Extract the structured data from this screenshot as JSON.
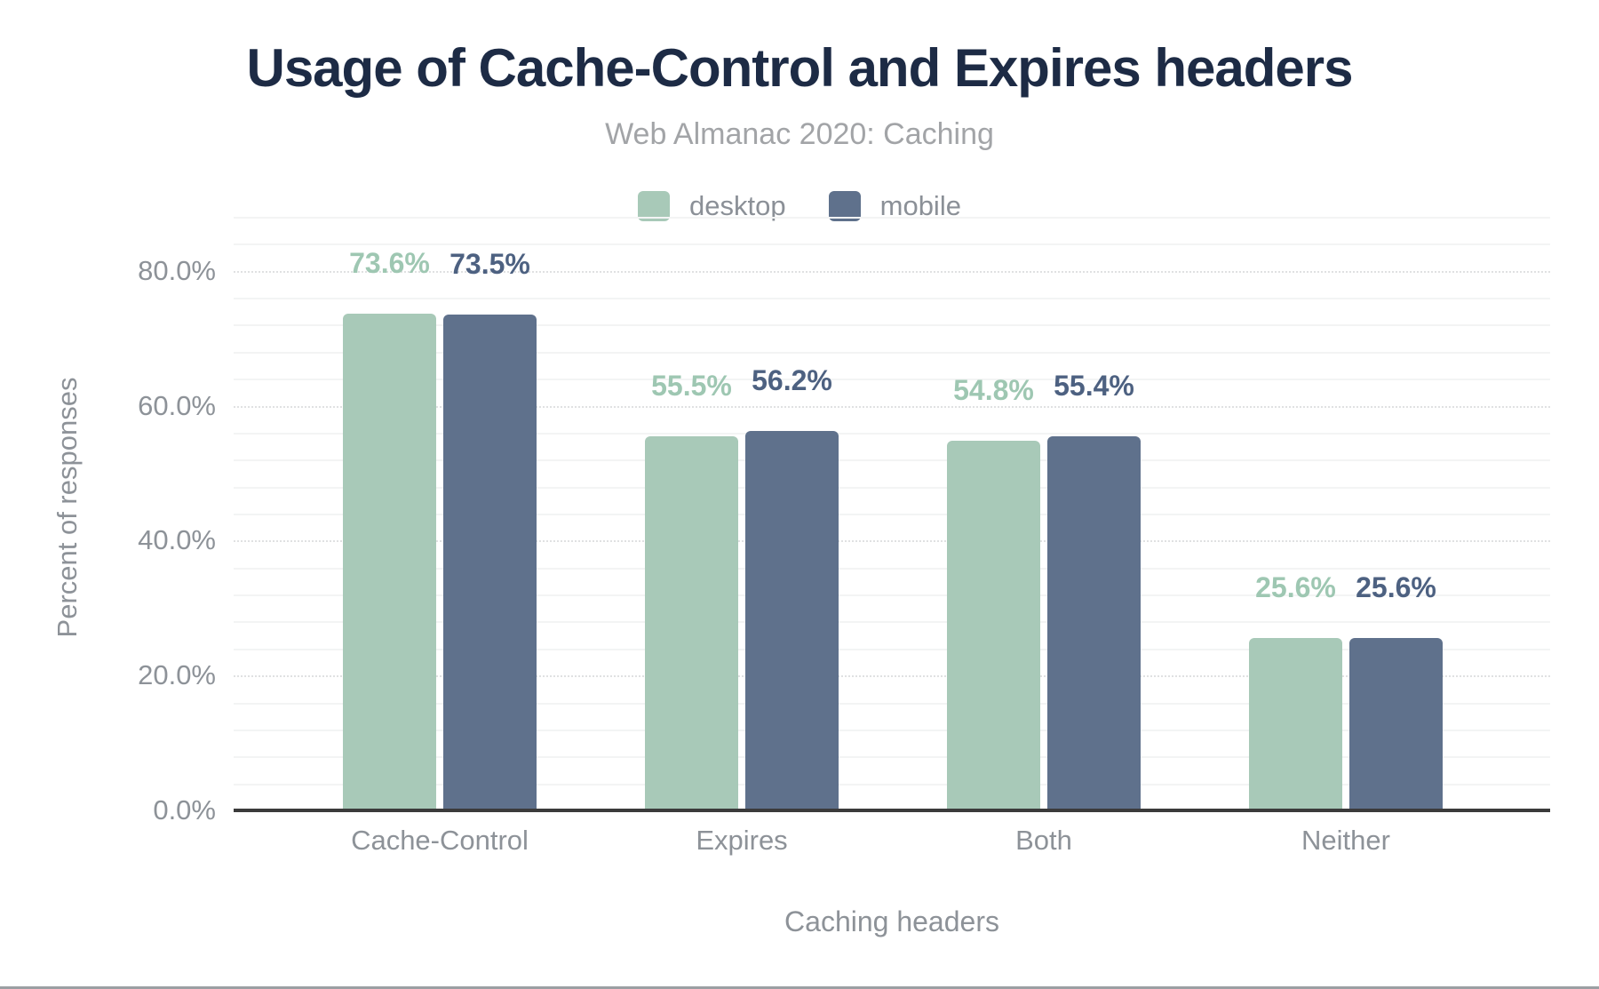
{
  "title": "Usage of Cache-Control and Expires headers",
  "subtitle": "Web Almanac 2020: Caching",
  "colors": {
    "title_text": "#1d2b45",
    "subtitle_text": "#a2a4a7",
    "axis_text": "#8d9298",
    "legend_text": "#8b9097",
    "axis_line": "#3b3b3b",
    "grid_minor": "#f3f4f4",
    "grid_major": "#e0e1e2",
    "bottom_border": "#9b9fa3",
    "desktop": "#a8c9b8",
    "mobile": "#5f718c"
  },
  "chart_data": {
    "type": "bar",
    "title": "Usage of Cache-Control and Expires headers",
    "subtitle": "Web Almanac 2020: Caching",
    "categories": [
      "Cache-Control",
      "Expires",
      "Both",
      "Neither"
    ],
    "series": [
      {
        "name": "desktop",
        "color": "#a8c9b8",
        "label_color": "#9ec7b2",
        "values": [
          73.6,
          55.5,
          54.8,
          25.6
        ]
      },
      {
        "name": "mobile",
        "color": "#5f718c",
        "label_color": "#4d6181",
        "values": [
          73.5,
          56.2,
          55.4,
          25.6
        ]
      }
    ],
    "value_labels": {
      "desktop": [
        "73.6%",
        "55.5%",
        "54.8%",
        "25.6%"
      ],
      "mobile": [
        "73.5%",
        "56.2%",
        "55.4%",
        "25.6%"
      ]
    },
    "xlabel": "Caching headers",
    "ylabel": "Percent of responses",
    "yticks": [
      {
        "value": 0,
        "label": "0.0%"
      },
      {
        "value": 20,
        "label": "20.0%"
      },
      {
        "value": 40,
        "label": "40.0%"
      },
      {
        "value": 60,
        "label": "60.0%"
      },
      {
        "value": 80,
        "label": "80.0%"
      }
    ],
    "ylim": [
      0,
      88
    ],
    "grid": {
      "minor_step": 4,
      "major_step": 20,
      "grid_on": true
    },
    "legend_position": "top"
  }
}
